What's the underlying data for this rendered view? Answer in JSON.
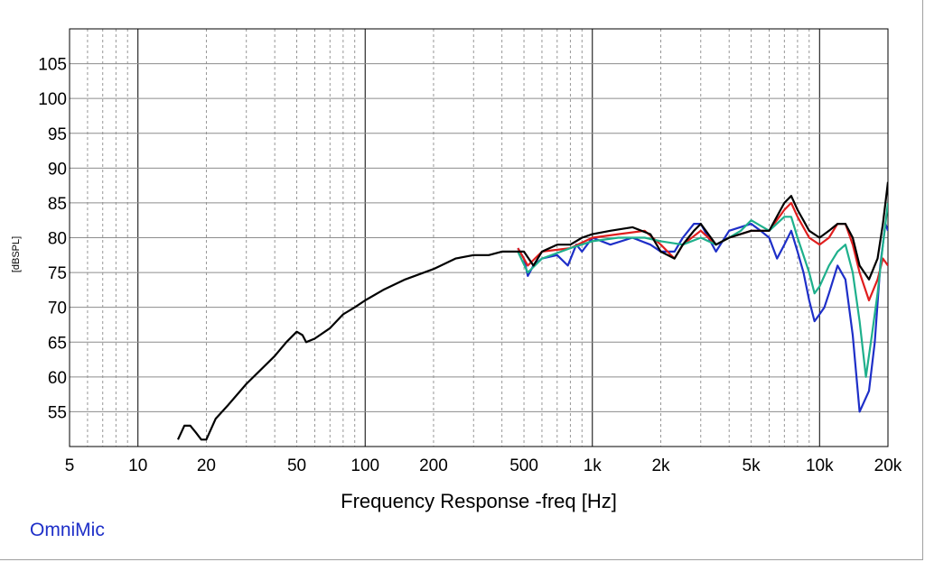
{
  "brand": {
    "text": "OmniMic",
    "color": "#1e2fc8"
  },
  "chart_data": {
    "type": "line",
    "title": "",
    "xlabel": "Frequency Response -freq [Hz]",
    "ylabel": "[dBSPL]",
    "x_scale": "log",
    "xlim": [
      5,
      20000
    ],
    "ylim": [
      50,
      110
    ],
    "grid": true,
    "x_ticks": [
      5,
      10,
      20,
      50,
      100,
      200,
      500,
      1000,
      2000,
      5000,
      10000,
      20000
    ],
    "x_tick_labels": [
      "5",
      "10",
      "20",
      "50",
      "100",
      "200",
      "500",
      "1k",
      "2k",
      "5k",
      "10k",
      "20k"
    ],
    "y_ticks": [
      55,
      60,
      65,
      70,
      75,
      80,
      85,
      90,
      95,
      100,
      105
    ],
    "y_tick_labels": [
      "55",
      "60",
      "65",
      "70",
      "75",
      "80",
      "85",
      "90",
      "95",
      "100",
      "105"
    ],
    "series": [
      {
        "color": "#1e2fc8",
        "points": [
          [
            470,
            78.5
          ],
          [
            500,
            77
          ],
          [
            520,
            74.5
          ],
          [
            550,
            76
          ],
          [
            600,
            77
          ],
          [
            700,
            77.5
          ],
          [
            780,
            76
          ],
          [
            850,
            79
          ],
          [
            900,
            78
          ],
          [
            1000,
            80
          ],
          [
            1200,
            79
          ],
          [
            1500,
            80
          ],
          [
            1800,
            79
          ],
          [
            2000,
            78
          ],
          [
            2300,
            78
          ],
          [
            2500,
            80
          ],
          [
            2800,
            82
          ],
          [
            3000,
            82
          ],
          [
            3500,
            78
          ],
          [
            4000,
            81
          ],
          [
            5000,
            82
          ],
          [
            5500,
            81
          ],
          [
            6000,
            80
          ],
          [
            6500,
            77
          ],
          [
            7000,
            79
          ],
          [
            7500,
            81
          ],
          [
            8000,
            78
          ],
          [
            8500,
            75
          ],
          [
            9000,
            71
          ],
          [
            9500,
            68
          ],
          [
            10000,
            69
          ],
          [
            10500,
            70
          ],
          [
            11000,
            72
          ],
          [
            12000,
            76
          ],
          [
            13000,
            74
          ],
          [
            14000,
            66
          ],
          [
            15000,
            55
          ],
          [
            16500,
            58
          ],
          [
            17500,
            65
          ],
          [
            18500,
            76
          ],
          [
            19500,
            82
          ],
          [
            20000,
            81
          ]
        ]
      },
      {
        "color": "#e01e1e",
        "points": [
          [
            470,
            78.5
          ],
          [
            520,
            76
          ],
          [
            600,
            78
          ],
          [
            800,
            78.5
          ],
          [
            1000,
            80
          ],
          [
            1300,
            80.5
          ],
          [
            1700,
            81
          ],
          [
            2000,
            79
          ],
          [
            2300,
            77
          ],
          [
            2500,
            79
          ],
          [
            3000,
            81
          ],
          [
            3500,
            79
          ],
          [
            4000,
            80
          ],
          [
            5000,
            81
          ],
          [
            6000,
            81
          ],
          [
            7000,
            84
          ],
          [
            7500,
            85
          ],
          [
            8000,
            83
          ],
          [
            9000,
            80
          ],
          [
            10000,
            79
          ],
          [
            11000,
            80
          ],
          [
            12000,
            82
          ],
          [
            13000,
            82
          ],
          [
            14000,
            79
          ],
          [
            15000,
            75
          ],
          [
            16500,
            71
          ],
          [
            18000,
            74
          ],
          [
            19000,
            77
          ],
          [
            20000,
            76
          ]
        ]
      },
      {
        "color": "#1eb08c",
        "points": [
          [
            470,
            78
          ],
          [
            520,
            75
          ],
          [
            600,
            77
          ],
          [
            800,
            78.5
          ],
          [
            1000,
            79.5
          ],
          [
            1300,
            80
          ],
          [
            1700,
            80
          ],
          [
            2000,
            79.5
          ],
          [
            2500,
            79
          ],
          [
            3000,
            80
          ],
          [
            3500,
            79
          ],
          [
            4000,
            80
          ],
          [
            4500,
            81
          ],
          [
            5000,
            82.5
          ],
          [
            6000,
            81
          ],
          [
            7000,
            83
          ],
          [
            7500,
            83
          ],
          [
            8000,
            80
          ],
          [
            9000,
            75
          ],
          [
            9500,
            72
          ],
          [
            10000,
            73
          ],
          [
            11000,
            76
          ],
          [
            12000,
            78
          ],
          [
            13000,
            79
          ],
          [
            14000,
            75
          ],
          [
            15000,
            68
          ],
          [
            16000,
            60
          ],
          [
            17000,
            66
          ],
          [
            18000,
            72
          ],
          [
            19000,
            79
          ],
          [
            20000,
            85
          ]
        ]
      },
      {
        "color": "#000000",
        "points": [
          [
            15,
            51
          ],
          [
            16,
            53
          ],
          [
            17,
            53
          ],
          [
            18,
            52
          ],
          [
            19,
            51
          ],
          [
            20,
            51
          ],
          [
            22,
            54
          ],
          [
            25,
            56
          ],
          [
            30,
            59
          ],
          [
            40,
            63
          ],
          [
            45,
            65
          ],
          [
            50,
            66.5
          ],
          [
            53,
            66
          ],
          [
            55,
            65
          ],
          [
            60,
            65.5
          ],
          [
            70,
            67
          ],
          [
            80,
            69
          ],
          [
            90,
            70
          ],
          [
            100,
            71
          ],
          [
            120,
            72.5
          ],
          [
            150,
            74
          ],
          [
            200,
            75.5
          ],
          [
            250,
            77
          ],
          [
            300,
            77.5
          ],
          [
            350,
            77.5
          ],
          [
            400,
            78
          ],
          [
            450,
            78
          ],
          [
            500,
            78
          ],
          [
            550,
            76
          ],
          [
            600,
            78
          ],
          [
            700,
            79
          ],
          [
            800,
            79
          ],
          [
            900,
            80
          ],
          [
            1000,
            80.5
          ],
          [
            1200,
            81
          ],
          [
            1500,
            81.5
          ],
          [
            1800,
            80.5
          ],
          [
            2000,
            78
          ],
          [
            2300,
            77
          ],
          [
            2500,
            79
          ],
          [
            2800,
            81
          ],
          [
            3000,
            82
          ],
          [
            3500,
            79
          ],
          [
            4000,
            80
          ],
          [
            5000,
            81
          ],
          [
            6000,
            81
          ],
          [
            7000,
            85
          ],
          [
            7500,
            86
          ],
          [
            8000,
            84
          ],
          [
            9000,
            81
          ],
          [
            10000,
            80
          ],
          [
            11000,
            81
          ],
          [
            12000,
            82
          ],
          [
            13000,
            82
          ],
          [
            14000,
            80
          ],
          [
            15000,
            76
          ],
          [
            16500,
            74
          ],
          [
            18000,
            77
          ],
          [
            19000,
            82
          ],
          [
            20000,
            88
          ]
        ]
      }
    ]
  }
}
